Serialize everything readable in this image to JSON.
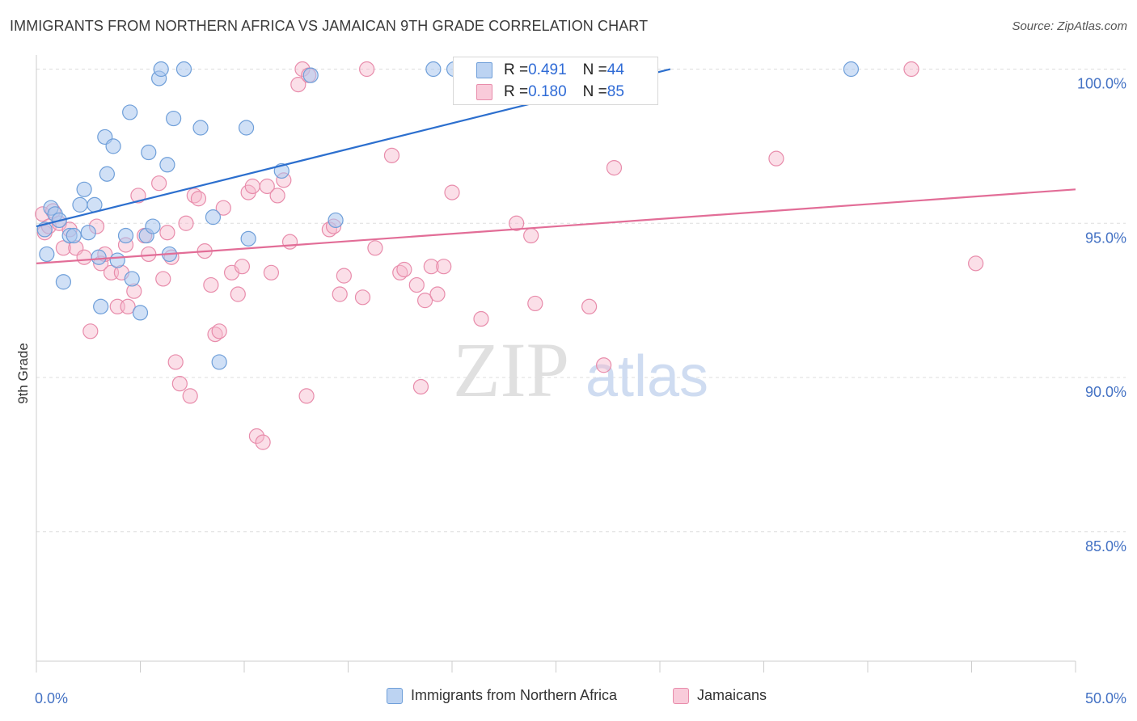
{
  "title": "IMMIGRANTS FROM NORTHERN AFRICA VS JAMAICAN 9TH GRADE CORRELATION CHART",
  "source": "Source: ZipAtlas.com",
  "watermark": {
    "zip": "ZIP",
    "atlas": "atlas"
  },
  "colors": {
    "blue_fill": "#a9c7ef",
    "blue_stroke": "#6f9fd9",
    "blue_line": "#2c6fce",
    "pink_fill": "#f6b8cc",
    "pink_stroke": "#e88cab",
    "pink_line": "#e26d97",
    "axis_text": "#4472c4",
    "grid": "#dddddd"
  },
  "legend_top": [
    {
      "r_label": "R = ",
      "r_value": "0.491",
      "n_label": "N = ",
      "n_value": "44"
    },
    {
      "r_label": "R = ",
      "r_value": "0.180",
      "n_label": "N = ",
      "n_value": "85"
    }
  ],
  "legend_bottom": [
    "Immigrants from Northern Africa",
    "Jamaicans"
  ],
  "chart_data": {
    "type": "scatter",
    "title": "IMMIGRANTS FROM NORTHERN AFRICA VS JAMAICAN 9TH GRADE CORRELATION CHART",
    "xlabel": "",
    "ylabel": "9th Grade",
    "xlim": [
      0,
      50
    ],
    "ylim": [
      80.8,
      100.8
    ],
    "x_tick_labels": [
      "0.0%",
      "50.0%"
    ],
    "y_ticks": [
      85,
      90,
      95,
      100
    ],
    "y_tick_labels": [
      "85.0%",
      "90.0%",
      "95.0%",
      "100.0%"
    ],
    "grid": "horizontal dashed",
    "legend_position": "top-center",
    "series": [
      {
        "name": "Immigrants from Northern Africa",
        "color": "#a9c7ef",
        "trend": {
          "x": [
            0,
            30.5
          ],
          "y": [
            94.9,
            100.0
          ]
        },
        "points": [
          [
            0.4,
            94.8
          ],
          [
            0.5,
            94.0
          ],
          [
            0.7,
            95.5
          ],
          [
            0.9,
            95.3
          ],
          [
            1.1,
            95.1
          ],
          [
            1.3,
            93.1
          ],
          [
            1.6,
            94.6
          ],
          [
            1.8,
            94.6
          ],
          [
            2.1,
            95.6
          ],
          [
            2.3,
            96.1
          ],
          [
            2.5,
            94.7
          ],
          [
            2.8,
            95.6
          ],
          [
            3.0,
            93.9
          ],
          [
            3.1,
            92.3
          ],
          [
            3.3,
            97.8
          ],
          [
            3.4,
            96.6
          ],
          [
            3.7,
            97.5
          ],
          [
            3.9,
            93.8
          ],
          [
            4.3,
            94.6
          ],
          [
            4.5,
            98.6
          ],
          [
            4.6,
            93.2
          ],
          [
            5.0,
            92.1
          ],
          [
            5.3,
            94.6
          ],
          [
            5.4,
            97.3
          ],
          [
            5.6,
            94.9
          ],
          [
            5.9,
            99.7
          ],
          [
            6.0,
            100.0
          ],
          [
            6.3,
            96.9
          ],
          [
            6.4,
            94.0
          ],
          [
            6.6,
            98.4
          ],
          [
            7.1,
            100.0
          ],
          [
            7.9,
            98.1
          ],
          [
            8.5,
            95.2
          ],
          [
            8.8,
            90.5
          ],
          [
            10.1,
            98.1
          ],
          [
            10.2,
            94.5
          ],
          [
            11.8,
            96.7
          ],
          [
            13.2,
            99.8
          ],
          [
            14.4,
            95.1
          ],
          [
            19.1,
            100.0
          ],
          [
            20.1,
            100.0
          ],
          [
            39.2,
            100.0
          ]
        ]
      },
      {
        "name": "Jamaicans",
        "color": "#f6b8cc",
        "trend": {
          "x": [
            0,
            50
          ],
          "y": [
            93.7,
            96.1
          ]
        },
        "points": [
          [
            0.3,
            95.3
          ],
          [
            0.4,
            94.7
          ],
          [
            0.6,
            94.9
          ],
          [
            0.8,
            95.4
          ],
          [
            1.1,
            95.0
          ],
          [
            1.3,
            94.2
          ],
          [
            1.6,
            94.8
          ],
          [
            1.9,
            94.2
          ],
          [
            2.3,
            93.9
          ],
          [
            2.6,
            91.5
          ],
          [
            2.9,
            94.9
          ],
          [
            3.1,
            93.7
          ],
          [
            3.3,
            94.0
          ],
          [
            3.6,
            93.4
          ],
          [
            3.9,
            92.3
          ],
          [
            4.1,
            93.4
          ],
          [
            4.3,
            94.3
          ],
          [
            4.4,
            92.3
          ],
          [
            4.7,
            92.8
          ],
          [
            4.9,
            95.9
          ],
          [
            5.2,
            94.6
          ],
          [
            5.4,
            94.0
          ],
          [
            5.9,
            96.3
          ],
          [
            6.1,
            93.2
          ],
          [
            6.3,
            94.7
          ],
          [
            6.5,
            93.9
          ],
          [
            6.7,
            90.5
          ],
          [
            6.9,
            89.8
          ],
          [
            7.2,
            95.0
          ],
          [
            7.4,
            89.4
          ],
          [
            7.6,
            95.9
          ],
          [
            7.8,
            95.8
          ],
          [
            8.1,
            94.1
          ],
          [
            8.4,
            93.0
          ],
          [
            8.6,
            91.4
          ],
          [
            8.8,
            91.5
          ],
          [
            9.0,
            95.5
          ],
          [
            9.4,
            93.4
          ],
          [
            9.7,
            92.7
          ],
          [
            9.9,
            93.6
          ],
          [
            10.2,
            96.0
          ],
          [
            10.4,
            96.2
          ],
          [
            10.6,
            88.1
          ],
          [
            10.9,
            87.9
          ],
          [
            11.1,
            96.2
          ],
          [
            11.3,
            93.4
          ],
          [
            11.6,
            95.9
          ],
          [
            11.9,
            96.4
          ],
          [
            12.2,
            94.4
          ],
          [
            12.6,
            99.5
          ],
          [
            12.8,
            100.0
          ],
          [
            13.0,
            89.4
          ],
          [
            13.1,
            99.8
          ],
          [
            14.1,
            94.8
          ],
          [
            14.3,
            94.9
          ],
          [
            14.6,
            92.7
          ],
          [
            14.8,
            93.3
          ],
          [
            15.7,
            92.6
          ],
          [
            15.9,
            100.0
          ],
          [
            16.3,
            94.2
          ],
          [
            17.1,
            97.2
          ],
          [
            17.5,
            93.4
          ],
          [
            17.7,
            93.5
          ],
          [
            18.3,
            93.0
          ],
          [
            18.5,
            89.7
          ],
          [
            18.7,
            92.5
          ],
          [
            19.0,
            93.6
          ],
          [
            19.3,
            92.7
          ],
          [
            19.6,
            93.6
          ],
          [
            20.0,
            96.0
          ],
          [
            21.4,
            91.9
          ],
          [
            23.1,
            95.0
          ],
          [
            23.8,
            94.6
          ],
          [
            24.0,
            92.4
          ],
          [
            26.6,
            92.3
          ],
          [
            27.3,
            90.4
          ],
          [
            27.8,
            96.8
          ],
          [
            35.6,
            97.1
          ],
          [
            42.1,
            100.0
          ],
          [
            45.2,
            93.7
          ]
        ]
      }
    ]
  }
}
